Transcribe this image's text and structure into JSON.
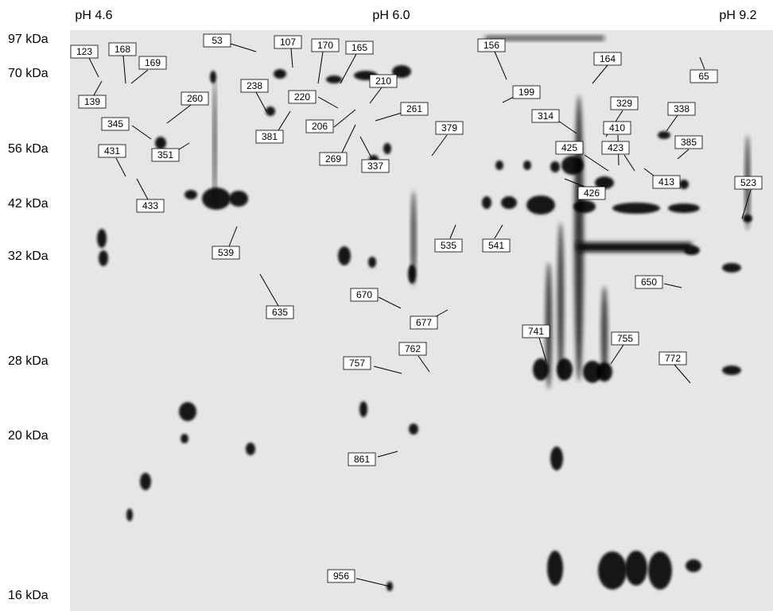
{
  "ph_labels": [
    "pH 4.6",
    "pH 6.0",
    "pH 9.2"
  ],
  "mw_labels": [
    "97 kDa",
    "70 kDa",
    "56 kDa",
    "42 kDa",
    "32 kDa",
    "28 kDa",
    "20 kDa",
    "16 kDa"
  ],
  "spots": [
    "123",
    "168",
    "169",
    "139",
    "53",
    "107",
    "170",
    "165",
    "238",
    "210",
    "220",
    "156",
    "199",
    "164",
    "65",
    "260",
    "345",
    "381",
    "206",
    "261",
    "379",
    "314",
    "329",
    "338",
    "410",
    "423",
    "425",
    "385",
    "431",
    "351",
    "269",
    "337",
    "426",
    "413",
    "433",
    "523",
    "539",
    "535",
    "541",
    "650",
    "670",
    "635",
    "677",
    "741",
    "755",
    "772",
    "762",
    "757",
    "861",
    "956"
  ]
}
